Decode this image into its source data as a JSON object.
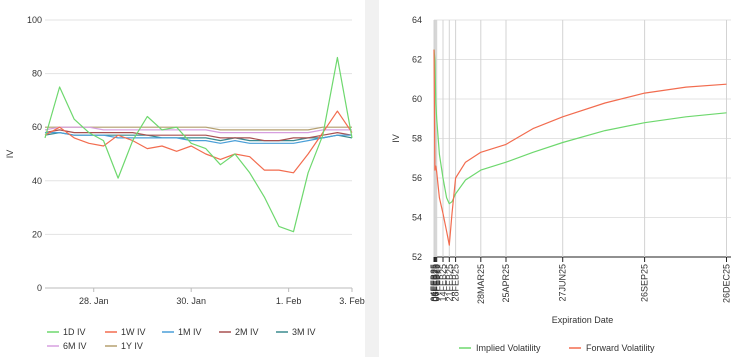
{
  "chart_data": [
    {
      "type": "line",
      "title": "",
      "xlabel": "",
      "ylabel": "IV",
      "ylim": [
        0,
        100
      ],
      "yticks": [
        0,
        20,
        40,
        60,
        80,
        100
      ],
      "xlim": [
        0,
        6.3
      ],
      "xticks": [
        {
          "label": "28. Jan",
          "x": 1
        },
        {
          "label": "30. Jan",
          "x": 3
        },
        {
          "label": "1. Feb",
          "x": 5
        },
        {
          "label": "3. Feb",
          "x": 6.3
        }
      ],
      "grid": true,
      "legend": "bottom",
      "x": [
        0,
        0.3,
        0.6,
        0.9,
        1.2,
        1.5,
        1.8,
        2.1,
        2.4,
        2.7,
        3.0,
        3.3,
        3.6,
        3.9,
        4.2,
        4.5,
        4.8,
        5.1,
        5.4,
        5.7,
        6.0,
        6.3
      ],
      "series": [
        {
          "name": "1D IV",
          "color": "#6ed86e",
          "values": [
            56,
            75,
            63,
            58,
            55,
            41,
            55,
            64,
            59,
            60,
            54,
            52,
            46,
            50,
            43,
            34,
            23,
            21,
            43,
            57,
            86,
            56
          ]
        },
        {
          "name": "1W IV",
          "color": "#f26c4f",
          "values": [
            57,
            60,
            56,
            54,
            53,
            57,
            55,
            52,
            53,
            51,
            53,
            50,
            48,
            50,
            49,
            44,
            44,
            43,
            50,
            58,
            66,
            58
          ]
        },
        {
          "name": "1M IV",
          "color": "#4a9fd8",
          "values": [
            58,
            58,
            57,
            57,
            57,
            56,
            56,
            56,
            56,
            56,
            55,
            55,
            54,
            55,
            54,
            54,
            54,
            54,
            55,
            56,
            57,
            57
          ]
        },
        {
          "name": "2M IV",
          "color": "#a85050",
          "values": [
            58,
            59,
            58,
            58,
            58,
            58,
            58,
            57,
            57,
            57,
            57,
            57,
            56,
            56,
            56,
            55,
            55,
            56,
            56,
            57,
            58,
            57
          ]
        },
        {
          "name": "3M IV",
          "color": "#3a8a8f",
          "values": [
            57,
            58,
            57,
            57,
            57,
            57,
            57,
            57,
            56,
            56,
            56,
            56,
            55,
            56,
            55,
            55,
            55,
            55,
            56,
            56,
            57,
            56
          ]
        },
        {
          "name": "6M IV",
          "color": "#d7a0e0",
          "values": [
            59,
            60,
            60,
            60,
            59,
            59,
            59,
            59,
            59,
            59,
            59,
            59,
            58,
            58,
            58,
            58,
            58,
            58,
            58,
            59,
            59,
            59
          ]
        },
        {
          "name": "1Y IV",
          "color": "#b5a070",
          "values": [
            60,
            60,
            60,
            60,
            60,
            60,
            60,
            60,
            60,
            60,
            60,
            60,
            59,
            59,
            59,
            59,
            59,
            59,
            59,
            60,
            60,
            60
          ]
        }
      ]
    },
    {
      "type": "line",
      "title": "",
      "xlabel": "Expiration Date",
      "ylabel": "IV",
      "ylim": [
        52,
        64
      ],
      "yticks": [
        52,
        54,
        56,
        58,
        60,
        62,
        64
      ],
      "xlim": [
        0,
        330
      ],
      "xticks": [
        {
          "label": "04FEB25",
          "x": 0
        },
        {
          "label": "05FEB25",
          "x": 1
        },
        {
          "label": "06FEB25",
          "x": 2
        },
        {
          "label": "07FEB25",
          "x": 3
        },
        {
          "label": "14FEB25",
          "x": 10
        },
        {
          "label": "21FEB25",
          "x": 17
        },
        {
          "label": "28FEB25",
          "x": 24
        },
        {
          "label": "28MAR25",
          "x": 52
        },
        {
          "label": "25APR25",
          "x": 80
        },
        {
          "label": "27JUN25",
          "x": 143
        },
        {
          "label": "26SEP25",
          "x": 234
        },
        {
          "label": "26DEC25",
          "x": 325
        }
      ],
      "grid": true,
      "legend": "bottom",
      "series": [
        {
          "name": "Implied Volatility",
          "color": "#6ed86e",
          "points": [
            [
              0,
              62.5
            ],
            [
              1,
              62.0
            ],
            [
              2,
              59.8
            ],
            [
              3,
              59.0
            ],
            [
              6,
              57.2
            ],
            [
              10,
              56.0
            ],
            [
              14,
              55.0
            ],
            [
              17,
              54.7
            ],
            [
              20,
              54.8
            ],
            [
              24,
              55.2
            ],
            [
              35,
              55.9
            ],
            [
              52,
              56.4
            ],
            [
              80,
              56.8
            ],
            [
              110,
              57.3
            ],
            [
              143,
              57.8
            ],
            [
              190,
              58.4
            ],
            [
              234,
              58.8
            ],
            [
              280,
              59.1
            ],
            [
              325,
              59.3
            ]
          ]
        },
        {
          "name": "Forward Volatility",
          "color": "#f26c4f",
          "points": [
            [
              0,
              62.5
            ],
            [
              1,
              56.4
            ],
            [
              2,
              56.6
            ],
            [
              3,
              56.3
            ],
            [
              6,
              55.0
            ],
            [
              10,
              54.2
            ],
            [
              14,
              53.3
            ],
            [
              17,
              52.6
            ],
            [
              20,
              54.2
            ],
            [
              24,
              56.0
            ],
            [
              35,
              56.8
            ],
            [
              52,
              57.3
            ],
            [
              80,
              57.7
            ],
            [
              110,
              58.5
            ],
            [
              143,
              59.1
            ],
            [
              190,
              59.8
            ],
            [
              234,
              60.3
            ],
            [
              280,
              60.6
            ],
            [
              325,
              60.75
            ]
          ]
        }
      ]
    }
  ]
}
